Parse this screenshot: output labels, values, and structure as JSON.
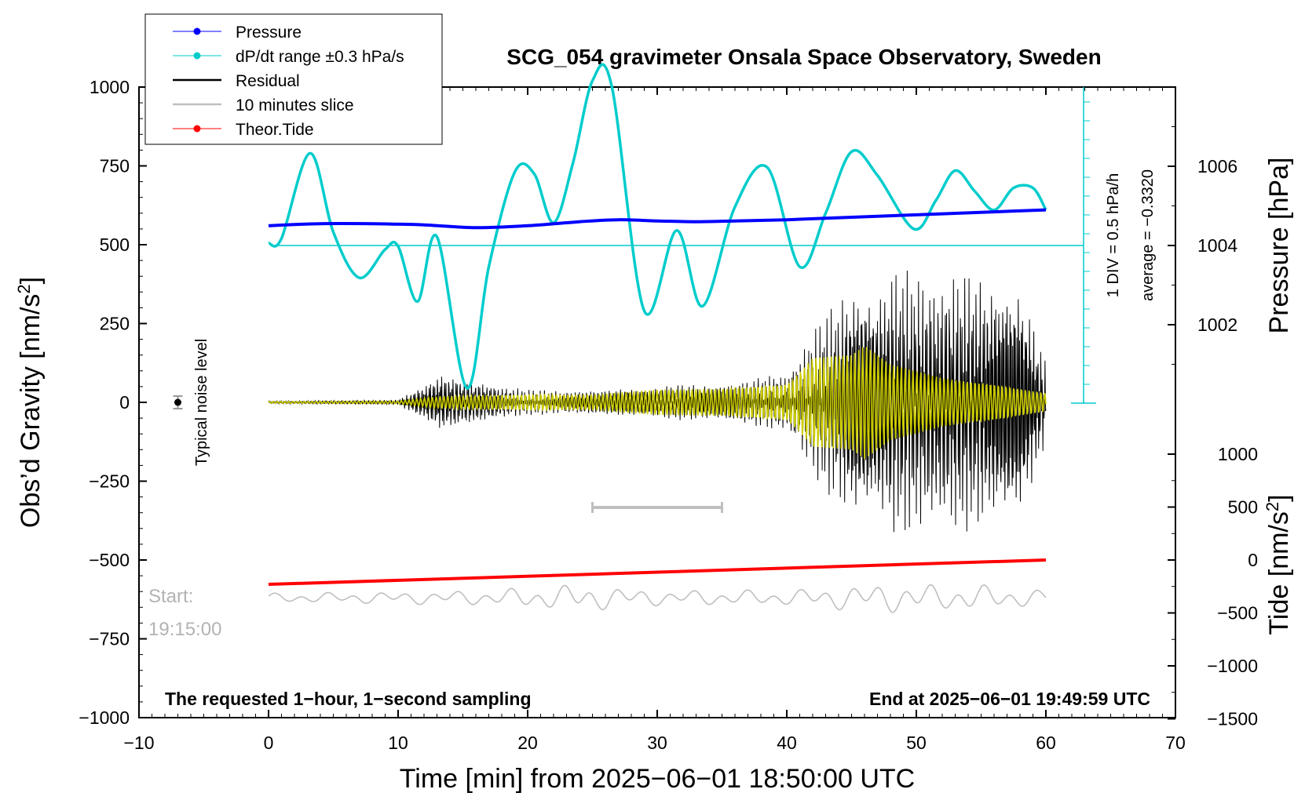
{
  "chart_data": {
    "type": "line",
    "title": "SCG_054 gravimeter Onsala Space Observatory, Sweden",
    "xlabel": "Time [min] from 2025−06−01 18:50:00 UTC",
    "ylabel_left_main": "Obs’d Gravity [nm/s",
    "ylabel_left_sup": "2",
    "ylabel_left_close": "]",
    "ylabel_right_top": "Pressure [hPa]",
    "ylabel_right_bottom_main": "Tide [nm/s",
    "ylabel_right_bottom_sup": "2",
    "ylabel_right_bottom_close": "]",
    "xlim": [
      -10,
      70
    ],
    "ylim_gravity": [
      -1000,
      1000
    ],
    "ylim_pressure_visible": [
      1001,
      1007
    ],
    "ylim_tide": [
      -1500,
      1000
    ],
    "x_ticks": [
      "−10",
      "0",
      "10",
      "20",
      "30",
      "40",
      "50",
      "60",
      "70"
    ],
    "x_tick_values": [
      -10,
      0,
      10,
      20,
      30,
      40,
      50,
      60,
      70
    ],
    "y_ticks_gravity": [
      "1000",
      "750",
      "500",
      "250",
      "0",
      "−250",
      "−500",
      "−750",
      "−1000"
    ],
    "y_tick_values_gravity": [
      1000,
      750,
      500,
      250,
      0,
      -250,
      -500,
      -750,
      -1000
    ],
    "y_ticks_pressure": [
      "1006",
      "1004",
      "1002"
    ],
    "y_tick_values_pressure": [
      1006,
      1004,
      1002
    ],
    "y_ticks_tide": [
      "1000",
      "500",
      "0",
      "−500",
      "−1000",
      "−1500"
    ],
    "y_tick_values_tide": [
      1000,
      500,
      0,
      -500,
      -1000,
      -1500
    ],
    "legend": [
      {
        "label": "Pressure",
        "color": "#0000ff",
        "marker": true
      },
      {
        "label": "dP/dt range ±0.3 hPa/s",
        "color": "#00cccc",
        "marker": true
      },
      {
        "label": "Residual",
        "color": "#000000",
        "marker": false
      },
      {
        "label": "10 minutes slice",
        "color": "#bfbfbf",
        "marker": false
      },
      {
        "label": "Theor.Tide",
        "color": "#ff0000",
        "marker": true
      }
    ],
    "legend_position": "top-left",
    "annotations": {
      "noise_label": "Typical noise level",
      "start_label": "Start:",
      "start_time": "19:15:00",
      "sampling_note": "The requested 1−hour, 1−second sampling",
      "end_note": "End at 2025−06−01 19:49:59 UTC",
      "div_label": "1 DIV = 0.5 hPa/h",
      "average_label": "average = −0.3320"
    },
    "slice_range_minutes": [
      25,
      35
    ],
    "noise_level": {
      "x": -7,
      "y": 0,
      "err": 20
    },
    "series": [
      {
        "name": "Pressure",
        "axis": "pressure",
        "color": "#0000ff",
        "x": [
          0,
          4,
          8,
          12,
          16,
          20,
          24,
          27,
          30,
          33,
          36,
          40,
          44,
          48,
          52,
          56,
          60
        ],
        "values": [
          1004.5,
          1004.55,
          1004.55,
          1004.52,
          1004.45,
          1004.5,
          1004.6,
          1004.65,
          1004.62,
          1004.6,
          1004.62,
          1004.65,
          1004.7,
          1004.75,
          1004.8,
          1004.85,
          1004.9
        ]
      },
      {
        "name": "dP/dt",
        "axis": "gravity",
        "color": "#00cccc",
        "x": [
          0,
          1,
          3.2,
          5,
          7,
          9,
          10,
          11.5,
          13,
          15.3,
          17,
          19,
          20.5,
          22,
          23.5,
          25,
          26.5,
          29,
          31.5,
          33.5,
          36,
          38.5,
          41,
          43,
          45,
          47,
          49.8,
          51.5,
          53,
          54.5,
          56,
          57.5,
          59,
          60
        ],
        "values": [
          505,
          520,
          790,
          540,
          395,
          485,
          495,
          320,
          525,
          45,
          430,
          730,
          725,
          570,
          760,
          1020,
          1000,
          290,
          545,
          305,
          620,
          745,
          430,
          600,
          795,
          720,
          550,
          640,
          735,
          670,
          610,
          680,
          680,
          610
        ]
      },
      {
        "name": "Residual",
        "axis": "gravity",
        "color": "#000000",
        "x": [
          0,
          10,
          13.3,
          20,
          25,
          30,
          35,
          40,
          44,
          45,
          47,
          48,
          50,
          52,
          55,
          58,
          60
        ],
        "envelope": [
          5,
          8,
          100,
          40,
          45,
          50,
          70,
          100,
          360,
          450,
          420,
          480,
          420,
          430,
          440,
          450,
          130
        ]
      },
      {
        "name": "Residual filtered",
        "axis": "gravity",
        "color": "#cccc00",
        "x": [
          0,
          10,
          13.3,
          20,
          25,
          30,
          35,
          40,
          41,
          42,
          45,
          46,
          48,
          52,
          56,
          60
        ],
        "envelope": [
          3,
          4,
          20,
          25,
          25,
          40,
          45,
          60,
          100,
          145,
          150,
          180,
          120,
          80,
          60,
          30
        ]
      },
      {
        "name": "Theor.Tide",
        "axis": "tide",
        "color": "#ff0000",
        "x": [
          0,
          60
        ],
        "values": [
          -230,
          0
        ]
      },
      {
        "name": "10 minutes slice",
        "axis": "gravity",
        "color": "#bfbfbf",
        "center": -620,
        "x": [
          0,
          10,
          17,
          24,
          30,
          40,
          46,
          50,
          52,
          54,
          60
        ],
        "envelope": [
          15,
          20,
          25,
          45,
          25,
          25,
          45,
          50,
          40,
          45,
          25
        ]
      }
    ]
  }
}
